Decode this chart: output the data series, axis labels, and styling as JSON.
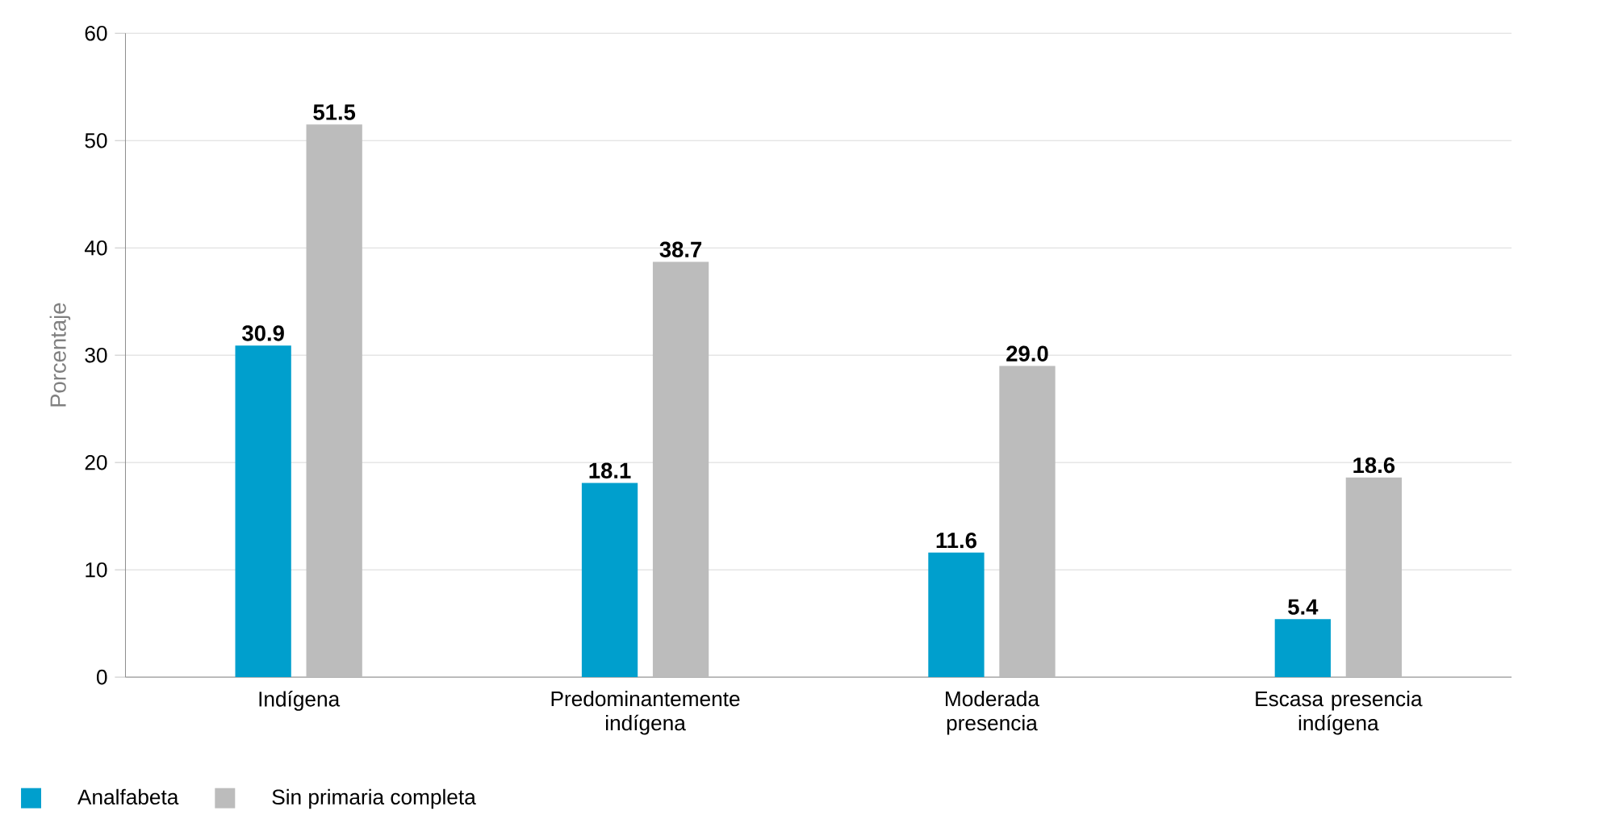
{
  "chart_data": {
    "type": "bar",
    "ylabel": "Porcentaje",
    "categories": [
      "Indígena",
      "Predominantemente indígena",
      "Moderada presencia",
      "Escasa presencia indígena"
    ],
    "series": [
      {
        "name": "Analfabeta",
        "color": "#009fcd",
        "values": [
          30.9,
          18.1,
          11.6,
          5.4
        ],
        "value_labels": [
          "30.9",
          "18.1",
          "11.6",
          "5.4"
        ]
      },
      {
        "name": "Sin primaria completa",
        "color": "#bcbcbc",
        "values": [
          51.5,
          38.7,
          29.0,
          18.6
        ],
        "value_labels": [
          "51.5",
          "38.7",
          "29.0",
          "18.6"
        ]
      }
    ],
    "ylim": [
      0,
      60
    ],
    "yticks": [
      0,
      10,
      20,
      30,
      40,
      50,
      60
    ],
    "grid": "y",
    "legend": "bottom left"
  }
}
